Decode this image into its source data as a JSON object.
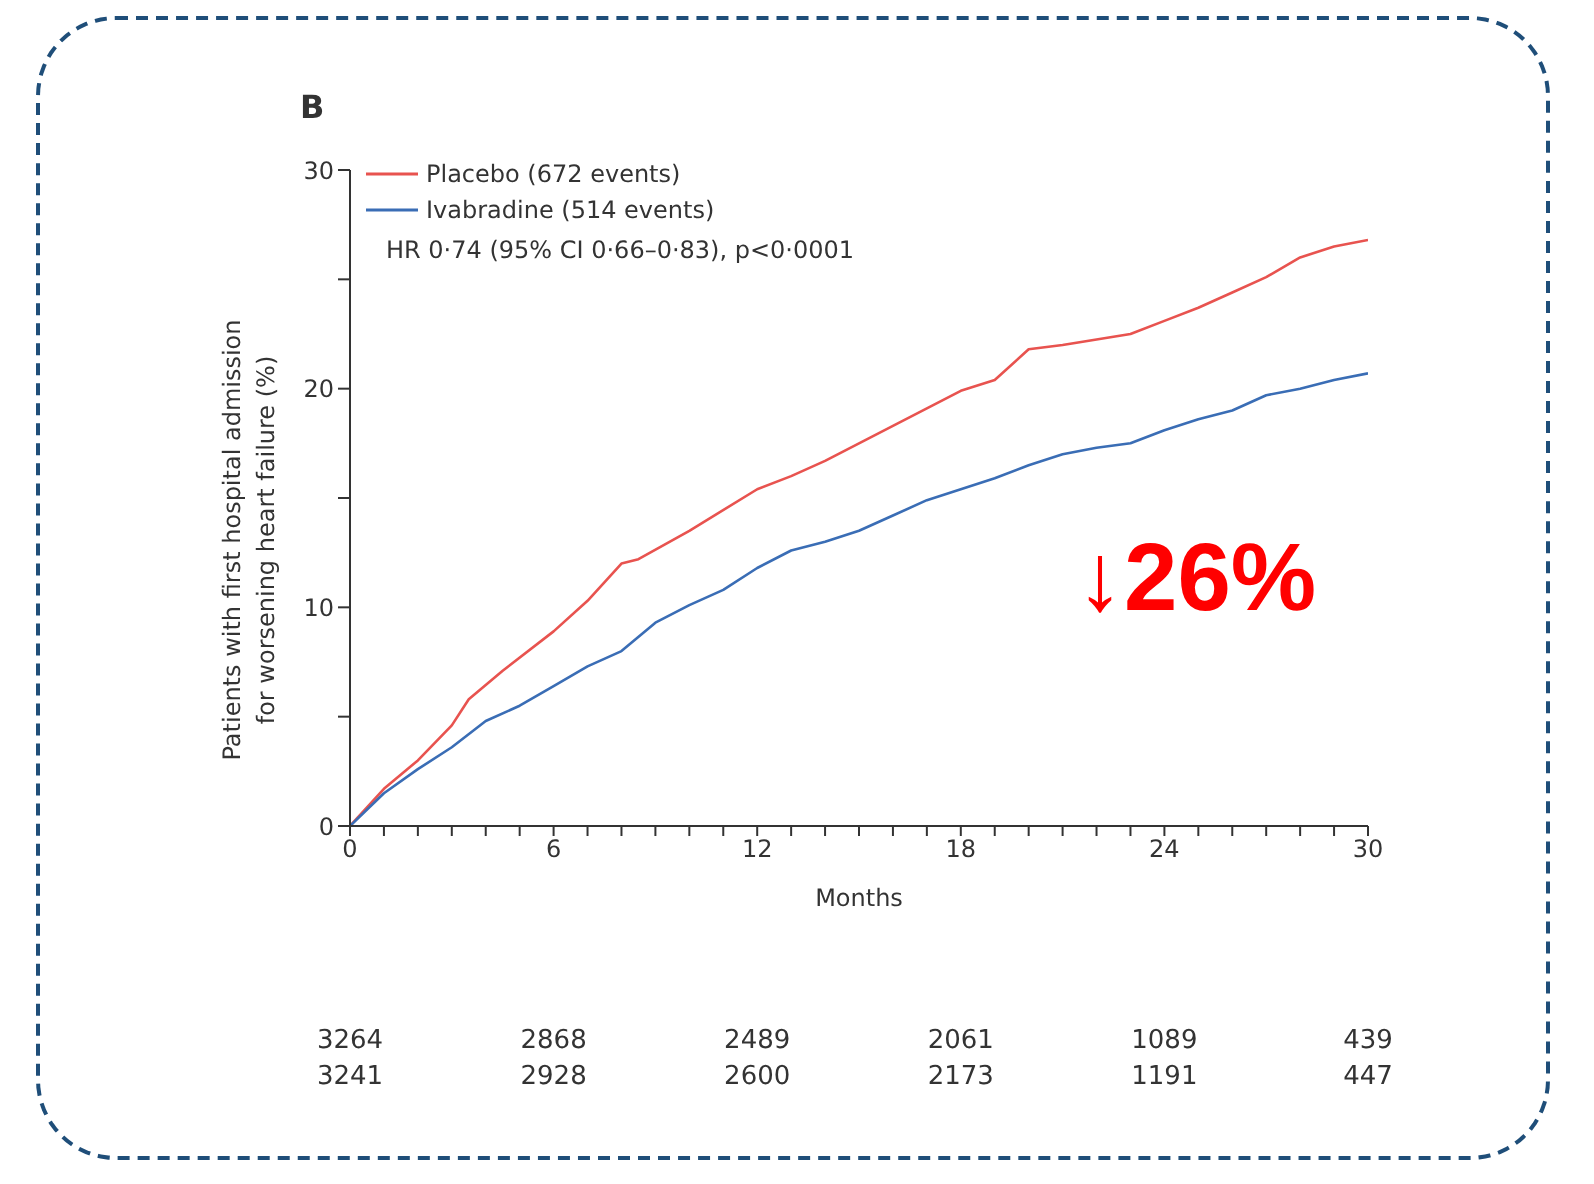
{
  "chart_data": {
    "type": "line",
    "title": "B",
    "xlabel": "Months",
    "ylabel": "Patients with first hospital admission for worsening heart failure (%)",
    "xlim": [
      0,
      30
    ],
    "ylim": [
      0,
      30
    ],
    "xticks": [
      0,
      {
        "value": 1,
        "label": null
      },
      {
        "value": 2,
        "label": null
      },
      {
        "value": 3,
        "label": null
      },
      {
        "value": 4,
        "label": null
      },
      {
        "value": 5,
        "label": null
      },
      6,
      {
        "value": 7,
        "label": null
      },
      {
        "value": 8,
        "label": null
      },
      {
        "value": 9,
        "label": null
      },
      {
        "value": 10,
        "label": null
      },
      {
        "value": 11,
        "label": null
      },
      12,
      {
        "value": 13,
        "label": null
      },
      {
        "value": 14,
        "label": null
      },
      {
        "value": 15,
        "label": null
      },
      {
        "value": 16,
        "label": null
      },
      {
        "value": 17,
        "label": null
      },
      18,
      {
        "value": 19,
        "label": null
      },
      {
        "value": 20,
        "label": null
      },
      {
        "value": 21,
        "label": null
      },
      {
        "value": 22,
        "label": null
      },
      {
        "value": 23,
        "label": null
      },
      24,
      {
        "value": 25,
        "label": null
      },
      {
        "value": 26,
        "label": null
      },
      {
        "value": 27,
        "label": null
      },
      {
        "value": 28,
        "label": null
      },
      {
        "value": 29,
        "label": null
      },
      30
    ],
    "yticks": [
      0,
      {
        "value": 5,
        "label": null
      },
      10,
      {
        "value": 15,
        "label": null
      },
      20,
      {
        "value": 25,
        "label": null
      },
      30
    ],
    "grid": false,
    "legend": "top left",
    "marker": "none",
    "line_style": "solid",
    "series": [
      {
        "name": "Placebo (672 events)",
        "color": "#e8534f",
        "x": [
          0,
          1,
          2,
          3,
          3.5,
          4.5,
          6,
          7,
          8,
          8.5,
          10,
          12,
          13,
          14,
          16,
          18,
          19,
          20,
          21,
          23,
          24,
          25,
          26,
          27,
          28,
          29,
          30
        ],
        "values": [
          0,
          1.7,
          3,
          4.6,
          5.8,
          7.1,
          8.9,
          10.3,
          12,
          12.2,
          13.5,
          15.4,
          16,
          16.7,
          18.3,
          19.9,
          20.4,
          21.8,
          22,
          22.5,
          23.1,
          23.7,
          24.4,
          25.1,
          26,
          26.5,
          26.8
        ]
      },
      {
        "name": "Ivabradine (514 events)",
        "color": "#3a6db5",
        "x": [
          0,
          1,
          2,
          3,
          4,
          5,
          6,
          7,
          8,
          9,
          10,
          11,
          12,
          13,
          14,
          15,
          16,
          17,
          18,
          19,
          20,
          21,
          22,
          23,
          24,
          25,
          26,
          27,
          28,
          29,
          30
        ],
        "values": [
          0,
          1.5,
          2.6,
          3.6,
          4.8,
          5.5,
          6.4,
          7.3,
          8,
          9.3,
          10.1,
          10.8,
          11.8,
          12.6,
          13,
          13.5,
          14.2,
          14.9,
          15.4,
          15.9,
          16.5,
          17,
          17.3,
          17.5,
          18.1,
          18.6,
          19,
          19.7,
          20,
          20.4,
          20.7
        ]
      }
    ],
    "annotations": [
      "HR 0·74 (95% CI 0·66–0·83), p<0·0001",
      "↓26%",
      "3264",
      "2868",
      "2489",
      "2061",
      "1089",
      "439",
      "3241",
      "2928",
      "2600",
      "2173",
      "1191",
      "447"
    ]
  }
}
